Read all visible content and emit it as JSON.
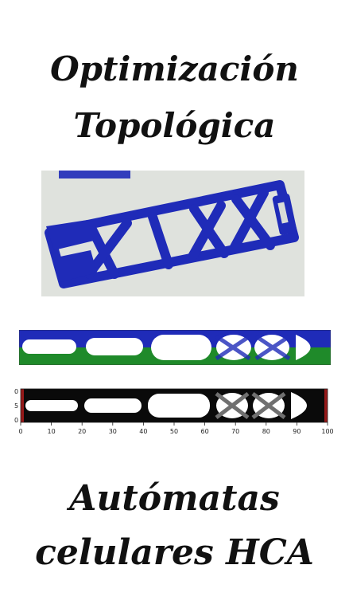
{
  "title_top": {
    "line1": "Optimización",
    "line2": "Topológica"
  },
  "title_bottom": {
    "line1": "Autómatas",
    "line2": "celulares HCA"
  },
  "plot": {
    "x_ticks": [
      "0",
      "10",
      "20",
      "30",
      "40",
      "50",
      "60",
      "70",
      "80",
      "90",
      "100"
    ],
    "y_ticks": [
      "0",
      "5",
      "0"
    ]
  },
  "colors": {
    "structure_blue": "#1f2bb8",
    "structure_green": "#1f8a2a",
    "photo_bg": "#d9dcd7",
    "title_text": "#111111"
  }
}
